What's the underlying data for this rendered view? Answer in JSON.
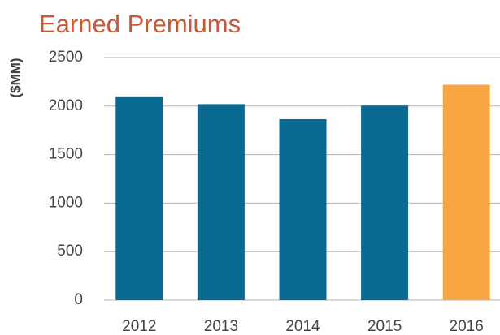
{
  "chart_data": {
    "type": "bar",
    "title": "Earned Premiums",
    "ylabel": "($MM)",
    "categories": [
      "2012",
      "2013",
      "2014",
      "2015",
      "2016"
    ],
    "values": [
      2100,
      2020,
      1865,
      2005,
      2220
    ],
    "colors": [
      "#0a6a92",
      "#0a6a92",
      "#0a6a92",
      "#0a6a92",
      "#f6a541"
    ],
    "ylim": [
      0,
      2500
    ],
    "yticks": [
      0,
      500,
      1000,
      1500,
      2000,
      2500
    ],
    "grid": true
  }
}
